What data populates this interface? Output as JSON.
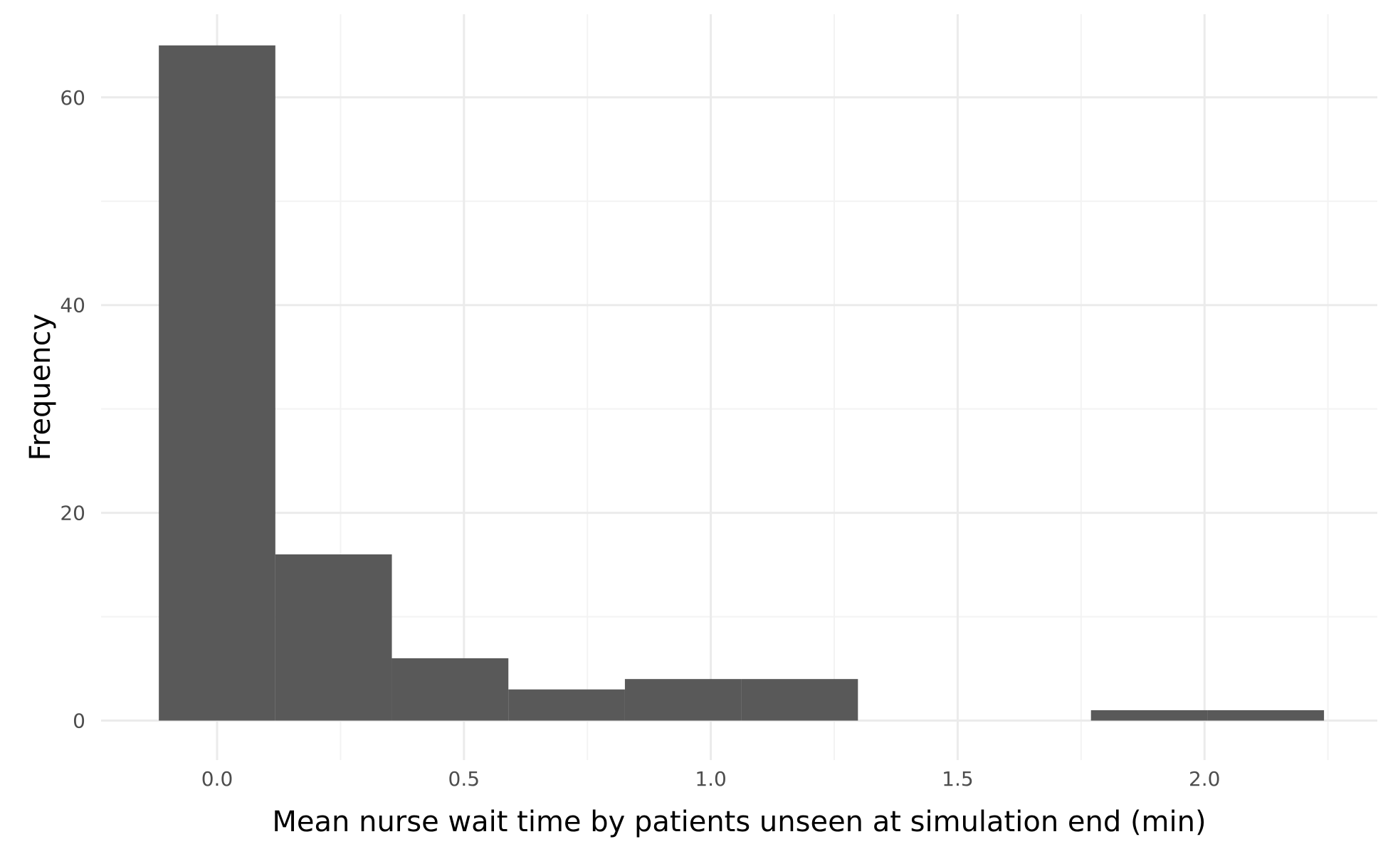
{
  "chart_data": {
    "type": "bar",
    "subtype": "histogram",
    "xlabel": "Mean nurse wait time by patients unseen at simulation end (min)",
    "ylabel": "Frequency",
    "xlim": [
      -0.235,
      2.35
    ],
    "ylim": [
      -3.8,
      68
    ],
    "x_ticks": [
      0.0,
      0.5,
      1.0,
      1.5,
      2.0
    ],
    "x_tick_labels": [
      "0.0",
      "0.5",
      "1.0",
      "1.5",
      "2.0"
    ],
    "y_ticks": [
      0,
      20,
      40,
      60
    ],
    "y_tick_labels": [
      "0",
      "20",
      "40",
      "60"
    ],
    "grid": true,
    "bar_color": "#595959",
    "bins": [
      {
        "x_start": -0.118,
        "x_end": 0.118,
        "count": 65
      },
      {
        "x_start": 0.118,
        "x_end": 0.354,
        "count": 16
      },
      {
        "x_start": 0.354,
        "x_end": 0.59,
        "count": 6
      },
      {
        "x_start": 0.59,
        "x_end": 0.826,
        "count": 3
      },
      {
        "x_start": 0.826,
        "x_end": 1.062,
        "count": 4
      },
      {
        "x_start": 1.062,
        "x_end": 1.298,
        "count": 4
      },
      {
        "x_start": 1.298,
        "x_end": 1.534,
        "count": 0
      },
      {
        "x_start": 1.534,
        "x_end": 1.77,
        "count": 0
      },
      {
        "x_start": 1.77,
        "x_end": 2.006,
        "count": 1
      },
      {
        "x_start": 2.006,
        "x_end": 2.242,
        "count": 1
      }
    ]
  }
}
